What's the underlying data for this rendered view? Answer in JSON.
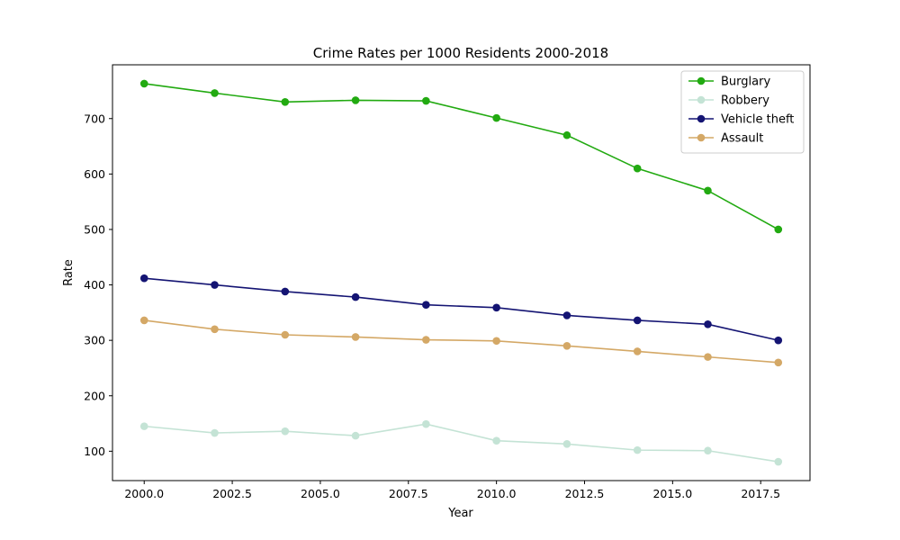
{
  "chart_data": {
    "type": "line",
    "title": "Crime Rates per 1000 Residents 2000-2018",
    "xlabel": "Year",
    "ylabel": "Rate",
    "x": [
      2000,
      2002,
      2004,
      2006,
      2008,
      2010,
      2012,
      2014,
      2016,
      2018
    ],
    "xlim": [
      1999.1,
      2018.9
    ],
    "ylim": [
      47,
      797
    ],
    "xticks": [
      2000.0,
      2002.5,
      2005.0,
      2007.5,
      2010.0,
      2012.5,
      2015.0,
      2017.5
    ],
    "xtick_labels": [
      "2000.0",
      "2002.5",
      "2005.0",
      "2007.5",
      "2010.0",
      "2012.5",
      "2015.0",
      "2017.5"
    ],
    "yticks": [
      100,
      200,
      300,
      400,
      500,
      600,
      700
    ],
    "ytick_labels": [
      "100",
      "200",
      "300",
      "400",
      "500",
      "600",
      "700"
    ],
    "grid": false,
    "legend_position": "top-right",
    "series": [
      {
        "name": "Burglary",
        "color": "#22aa11",
        "marker": "circle",
        "values": [
          763,
          746,
          730,
          733,
          732,
          701,
          670,
          610,
          570,
          500
        ]
      },
      {
        "name": "Robbery",
        "color": "#c4e3d5",
        "marker": "circle",
        "values": [
          145,
          133,
          136,
          128,
          149,
          119,
          113,
          102,
          101,
          81
        ]
      },
      {
        "name": "Vehicle theft",
        "color": "#141473",
        "marker": "circle",
        "values": [
          412,
          400,
          388,
          378,
          364,
          359,
          345,
          336,
          329,
          300
        ]
      },
      {
        "name": "Assault",
        "color": "#d4a866",
        "marker": "circle",
        "values": [
          336,
          320,
          310,
          306,
          301,
          299,
          290,
          280,
          270,
          260
        ]
      }
    ]
  }
}
